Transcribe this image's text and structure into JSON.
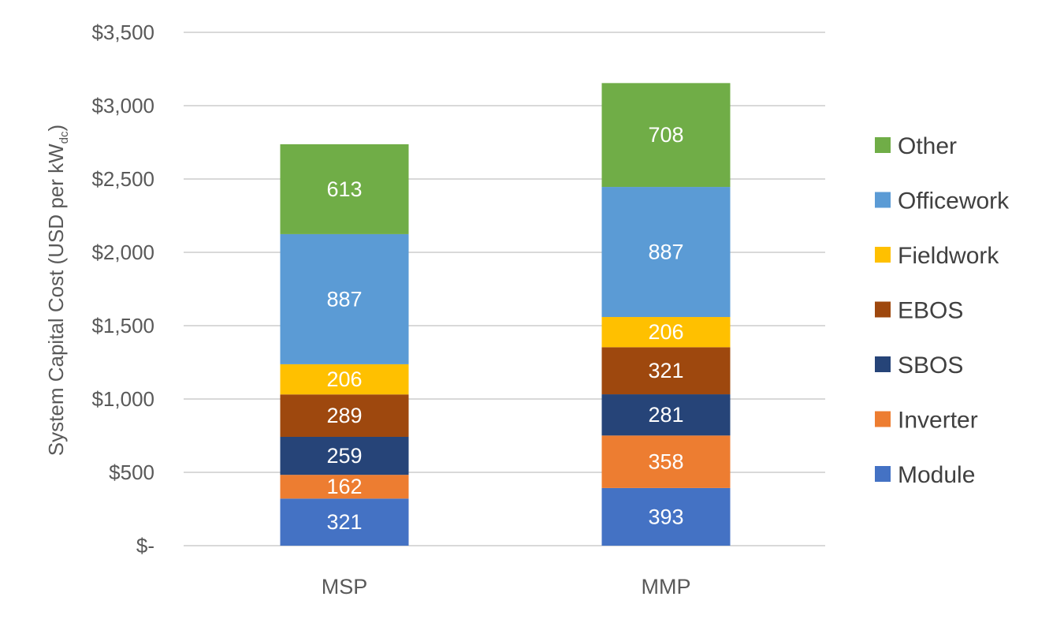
{
  "chart_data": {
    "type": "bar",
    "stacked": true,
    "categories": [
      "MSP",
      "MMP"
    ],
    "series": [
      {
        "name": "Module",
        "values": [
          321,
          393
        ],
        "color": "#4472C4"
      },
      {
        "name": "Inverter",
        "values": [
          162,
          358
        ],
        "color": "#ED7D31"
      },
      {
        "name": "SBOS",
        "values": [
          259,
          281
        ],
        "color": "#264478"
      },
      {
        "name": "EBOS",
        "values": [
          289,
          321
        ],
        "color": "#9E480E"
      },
      {
        "name": "Fieldwork",
        "values": [
          206,
          206
        ],
        "color": "#FFC000"
      },
      {
        "name": "Officework",
        "values": [
          887,
          887
        ],
        "color": "#5B9BD5"
      },
      {
        "name": "Other",
        "values": [
          613,
          708
        ],
        "color": "#70AD47"
      }
    ],
    "ylabel": "System Capital Cost (USD per kW",
    "ylabel_subscript": "dc",
    "ylabel_suffix": ")",
    "ylim": [
      0,
      3500
    ],
    "yticks": [
      0,
      500,
      1000,
      1500,
      2000,
      2500,
      3000,
      3500
    ],
    "ytick_labels": [
      "$-",
      "$500",
      "$1,000",
      "$1,500",
      "$2,000",
      "$2,500",
      "$3,000",
      "$3,500"
    ],
    "grid": true,
    "legend_position": "right",
    "gridline_color": "#D9D9D9"
  }
}
